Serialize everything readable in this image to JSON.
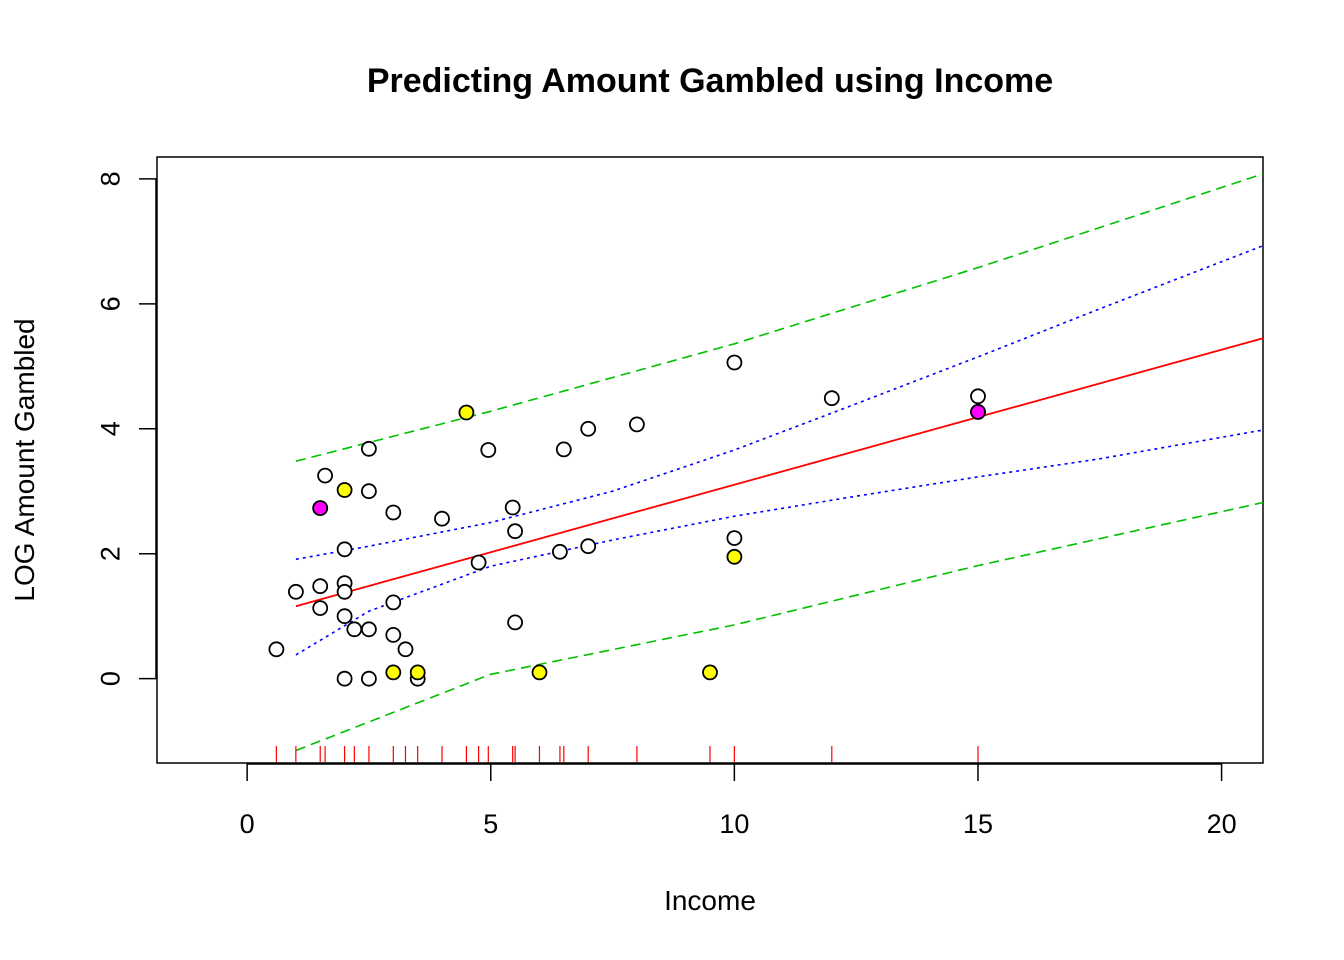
{
  "chart_data": {
    "type": "scatter",
    "title": "Predicting Amount Gambled using Income",
    "xlabel": "Income",
    "ylabel": "LOG Amount Gambled",
    "xlim": [
      -1.85,
      20.85
    ],
    "ylim": [
      -1.35,
      8.35
    ],
    "x_ticks": [
      0,
      5,
      10,
      15,
      20
    ],
    "y_ticks": [
      0,
      2,
      4,
      6,
      8
    ],
    "grid": false,
    "legend": "none",
    "colors": {
      "point_default": "#ffffff",
      "point_highlight_yellow": "#ffff00",
      "point_highlight_magenta": "#ff00ff",
      "fit_line": "#ff0000",
      "confidence_band": "#0000ff",
      "prediction_band": "#00c000",
      "rug": "#ff0000"
    },
    "points": [
      {
        "x": 0.6,
        "y": 0.47,
        "fill": "white"
      },
      {
        "x": 1.0,
        "y": 1.39,
        "fill": "white"
      },
      {
        "x": 1.5,
        "y": 1.48,
        "fill": "white"
      },
      {
        "x": 1.5,
        "y": 1.13,
        "fill": "white"
      },
      {
        "x": 1.5,
        "y": 2.73,
        "fill": "white"
      },
      {
        "x": 1.5,
        "y": 2.73,
        "fill": "magenta"
      },
      {
        "x": 1.6,
        "y": 3.25,
        "fill": "white"
      },
      {
        "x": 2.0,
        "y": 2.07,
        "fill": "white"
      },
      {
        "x": 2.0,
        "y": 1.53,
        "fill": "white"
      },
      {
        "x": 2.0,
        "y": 1.39,
        "fill": "white"
      },
      {
        "x": 2.0,
        "y": 1.0,
        "fill": "white"
      },
      {
        "x": 2.0,
        "y": 0.0,
        "fill": "white"
      },
      {
        "x": 2.0,
        "y": 3.02,
        "fill": "yellow"
      },
      {
        "x": 2.2,
        "y": 0.79,
        "fill": "white"
      },
      {
        "x": 2.5,
        "y": 3.68,
        "fill": "white"
      },
      {
        "x": 2.5,
        "y": 3.0,
        "fill": "white"
      },
      {
        "x": 2.5,
        "y": 0.79,
        "fill": "white"
      },
      {
        "x": 2.5,
        "y": 0.0,
        "fill": "white"
      },
      {
        "x": 3.0,
        "y": 2.66,
        "fill": "white"
      },
      {
        "x": 3.0,
        "y": 1.22,
        "fill": "white"
      },
      {
        "x": 3.0,
        "y": 0.7,
        "fill": "white"
      },
      {
        "x": 3.0,
        "y": 0.1,
        "fill": "yellow"
      },
      {
        "x": 3.25,
        "y": 0.47,
        "fill": "white"
      },
      {
        "x": 3.5,
        "y": 0.0,
        "fill": "white"
      },
      {
        "x": 3.5,
        "y": 0.1,
        "fill": "yellow"
      },
      {
        "x": 4.0,
        "y": 2.56,
        "fill": "white"
      },
      {
        "x": 4.5,
        "y": 4.26,
        "fill": "yellow"
      },
      {
        "x": 4.75,
        "y": 1.86,
        "fill": "white"
      },
      {
        "x": 4.95,
        "y": 3.66,
        "fill": "white"
      },
      {
        "x": 5.45,
        "y": 2.74,
        "fill": "white"
      },
      {
        "x": 5.5,
        "y": 2.36,
        "fill": "white"
      },
      {
        "x": 5.5,
        "y": 0.9,
        "fill": "white"
      },
      {
        "x": 6.0,
        "y": 0.1,
        "fill": "yellow"
      },
      {
        "x": 6.42,
        "y": 2.03,
        "fill": "white"
      },
      {
        "x": 6.5,
        "y": 3.67,
        "fill": "white"
      },
      {
        "x": 7.0,
        "y": 4.0,
        "fill": "white"
      },
      {
        "x": 7.0,
        "y": 2.12,
        "fill": "white"
      },
      {
        "x": 8.0,
        "y": 4.07,
        "fill": "white"
      },
      {
        "x": 9.5,
        "y": 0.1,
        "fill": "yellow"
      },
      {
        "x": 10.0,
        "y": 5.06,
        "fill": "white"
      },
      {
        "x": 10.0,
        "y": 2.25,
        "fill": "white"
      },
      {
        "x": 10.0,
        "y": 1.95,
        "fill": "yellow"
      },
      {
        "x": 12.0,
        "y": 4.49,
        "fill": "white"
      },
      {
        "x": 15.0,
        "y": 4.52,
        "fill": "white"
      },
      {
        "x": 15.0,
        "y": 4.27,
        "fill": "white"
      },
      {
        "x": 15.0,
        "y": 4.27,
        "fill": "magenta"
      }
    ],
    "fit_line": {
      "x": [
        1.0,
        20.85
      ],
      "y": [
        1.16,
        5.45
      ]
    },
    "confidence_upper": {
      "x": [
        1.0,
        2.5,
        5.0,
        7.5,
        10.0,
        12.5,
        15.0,
        17.5,
        20.85
      ],
      "y": [
        1.91,
        2.12,
        2.5,
        3.0,
        3.66,
        4.4,
        5.15,
        5.92,
        6.93
      ]
    },
    "confidence_lower": {
      "x": [
        1.0,
        2.5,
        5.0,
        7.5,
        10.0,
        12.5,
        15.0,
        17.5,
        20.85
      ],
      "y": [
        0.38,
        1.08,
        1.8,
        2.22,
        2.6,
        2.92,
        3.23,
        3.52,
        3.98
      ]
    },
    "prediction_upper": {
      "x": [
        1.0,
        5.0,
        10.0,
        15.0,
        20.85
      ],
      "y": [
        3.48,
        4.28,
        5.36,
        6.58,
        8.08
      ]
    },
    "prediction_lower": {
      "x": [
        1.0,
        5.0,
        10.0,
        15.0,
        20.85
      ],
      "y": [
        -1.15,
        0.07,
        0.86,
        1.81,
        2.82
      ]
    },
    "rug_x": [
      0.6,
      1.0,
      1.5,
      1.6,
      2.0,
      2.2,
      2.5,
      3.0,
      3.25,
      3.5,
      4.0,
      4.5,
      4.75,
      4.95,
      5.45,
      5.5,
      6.0,
      6.42,
      6.5,
      7.0,
      8.0,
      9.5,
      10.0,
      12.0,
      15.0
    ]
  }
}
